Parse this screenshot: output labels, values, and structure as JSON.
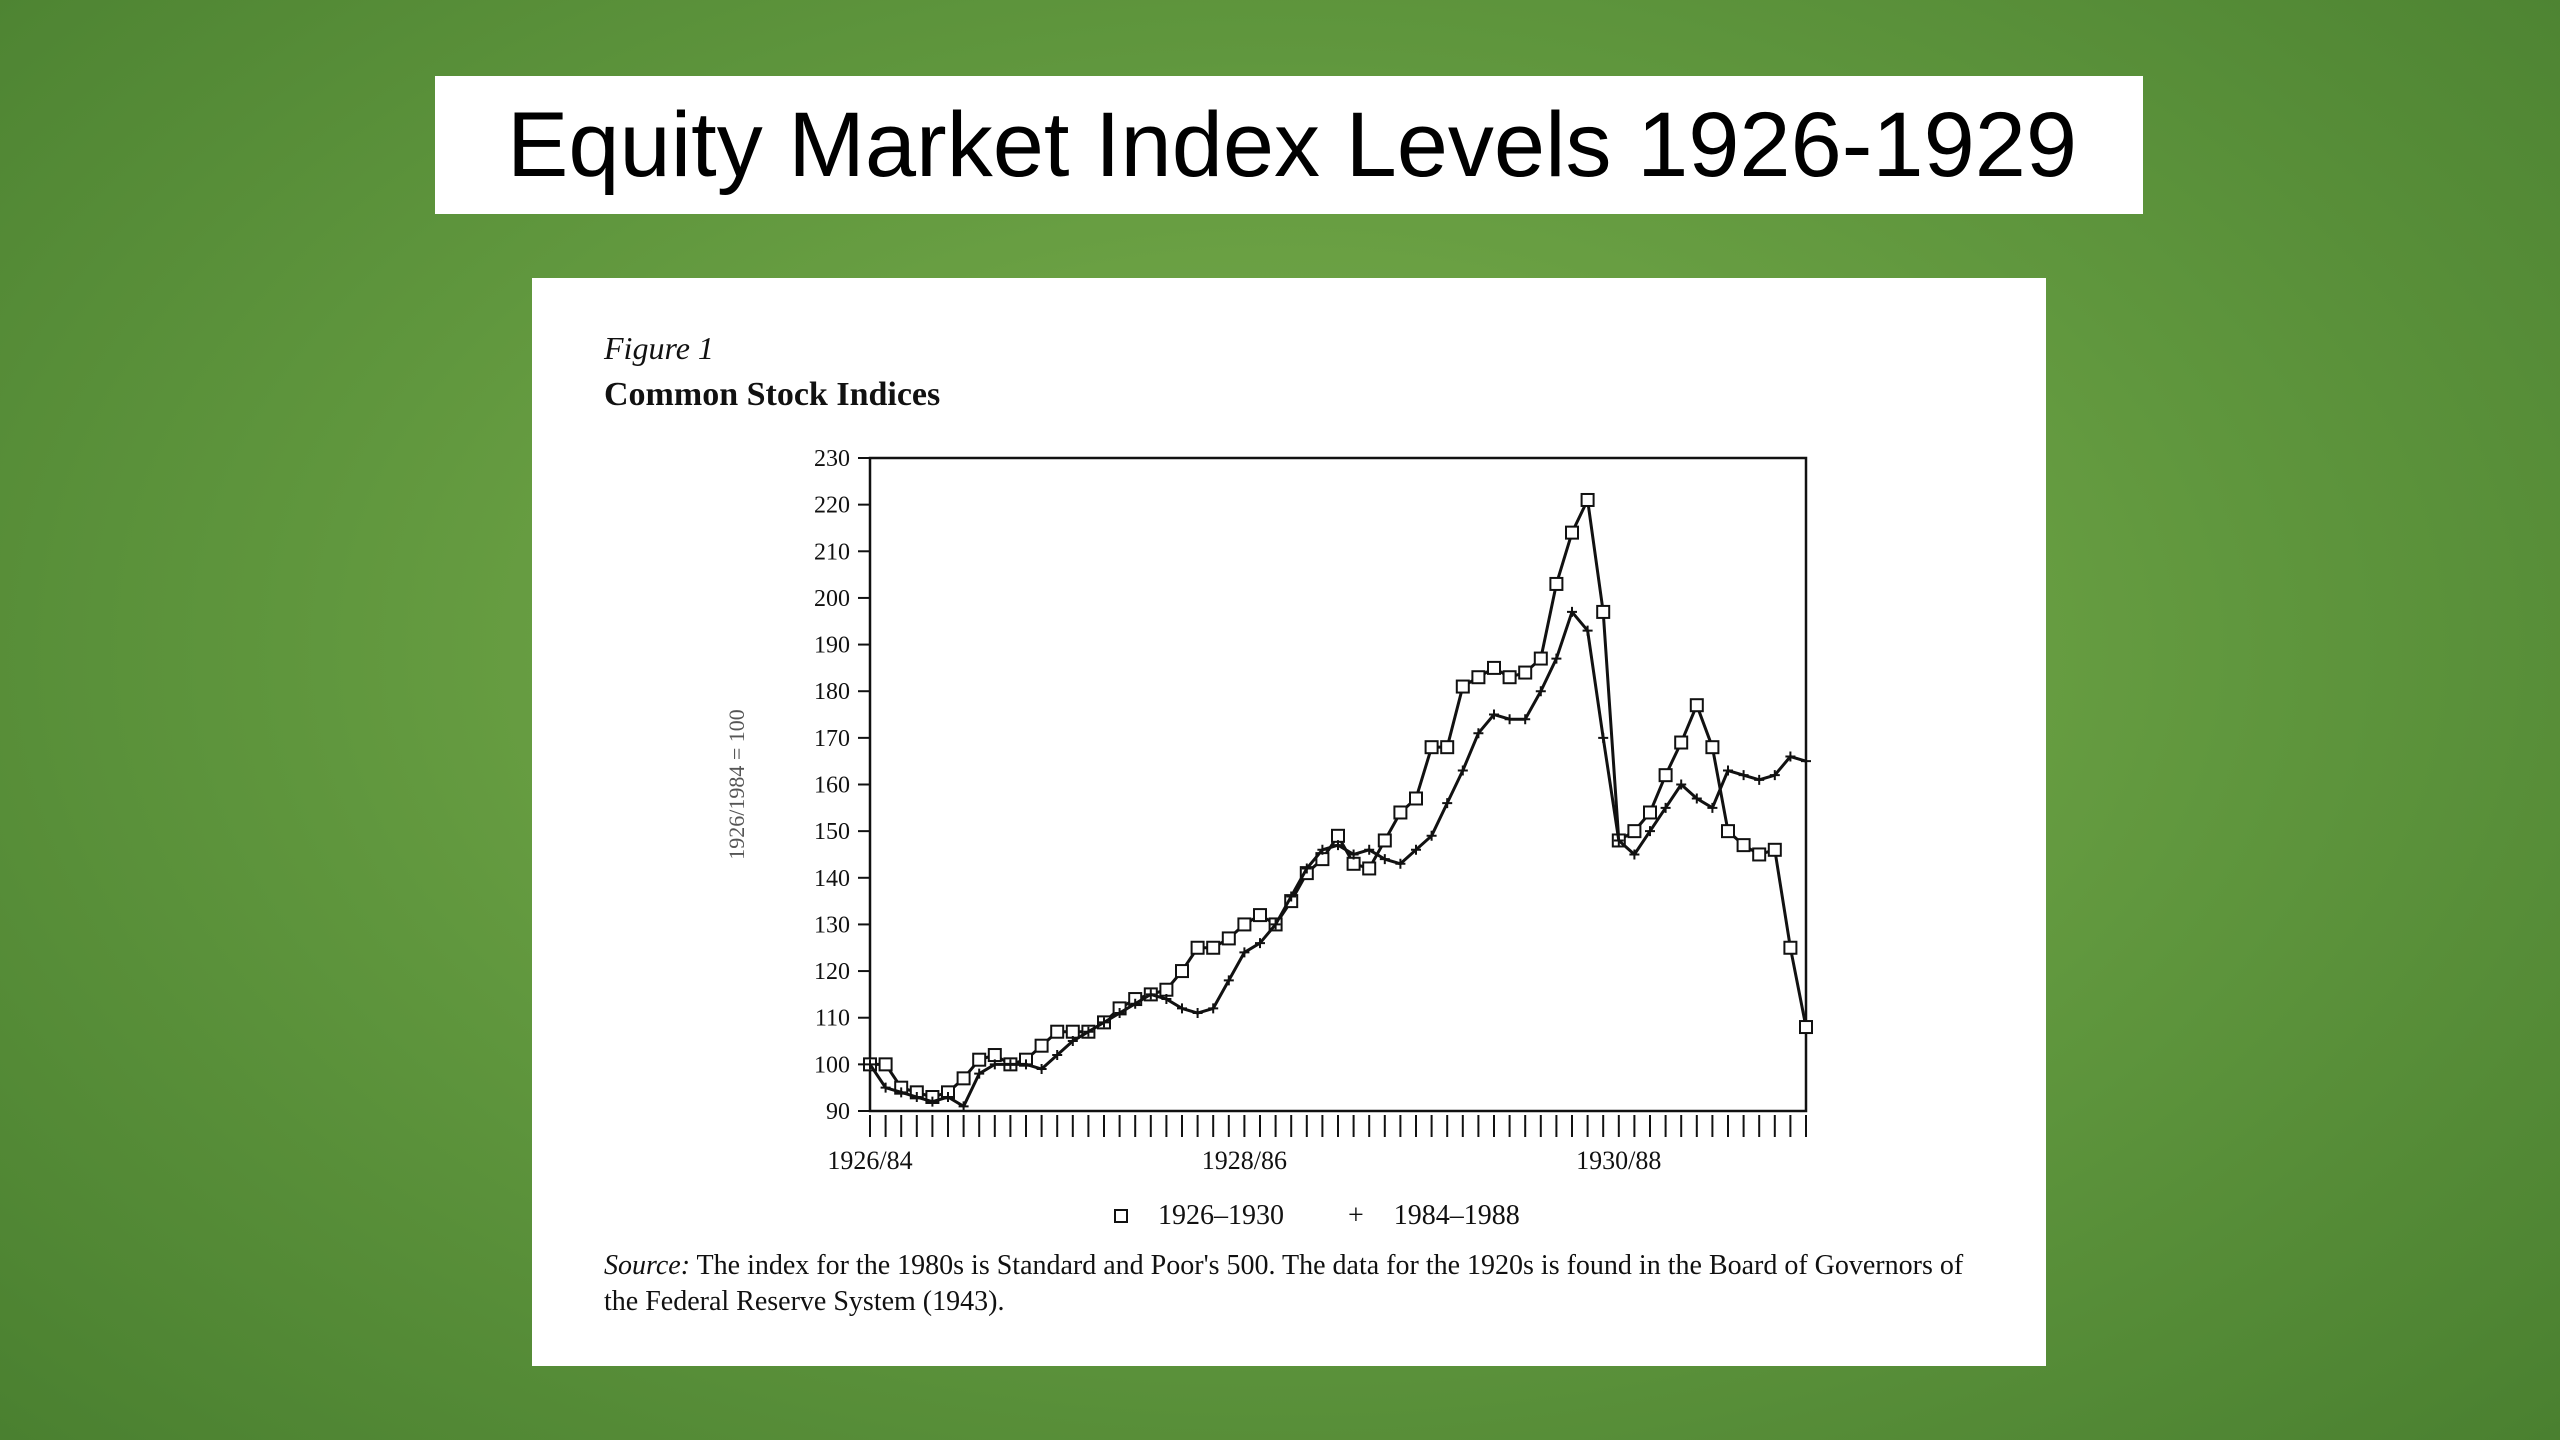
{
  "slide": {
    "title": "Equity Market Index Levels 1926-1929"
  },
  "figure": {
    "label": "Figure 1",
    "title": "Common Stock Indices",
    "source_label": "Source:",
    "source_text": "The index for the 1980s is Standard and Poor's 500. The data for the 1920s is found in the Board of Governors of the Federal Reserve System (1943)."
  },
  "colors": {
    "background": "#5f963d",
    "panel": "#ffffff",
    "ink": "#111111"
  },
  "chart_data": {
    "type": "line",
    "title": "Common Stock Indices",
    "xlabel": "",
    "ylabel": "1926/1984 = 100",
    "ylim": [
      90,
      230
    ],
    "yticks": [
      90,
      100,
      110,
      120,
      130,
      140,
      150,
      160,
      170,
      180,
      190,
      200,
      210,
      220,
      230
    ],
    "x_tick_labels": [
      {
        "index": 0,
        "label": "1926/84"
      },
      {
        "index": 24,
        "label": "1928/86"
      },
      {
        "index": 48,
        "label": "1930/88"
      }
    ],
    "n_periods": 61,
    "legend": "bottom",
    "grid": false,
    "series": [
      {
        "name": "1926–1930",
        "marker": "square",
        "values": [
          100,
          100,
          95,
          94,
          93,
          94,
          97,
          101,
          102,
          100,
          101,
          104,
          107,
          107,
          107,
          109,
          112,
          114,
          115,
          116,
          120,
          125,
          125,
          127,
          130,
          132,
          130,
          135,
          141,
          144,
          149,
          143,
          142,
          148,
          154,
          157,
          168,
          168,
          181,
          183,
          185,
          183,
          184,
          187,
          203,
          214,
          221,
          197,
          148,
          150,
          154,
          162,
          169,
          177,
          168,
          150,
          147,
          145,
          146,
          125,
          108
        ]
      },
      {
        "name": "1984–1988",
        "marker": "plus",
        "values": [
          100,
          95,
          94,
          93,
          92,
          93,
          91,
          98,
          100,
          100,
          100,
          99,
          102,
          105,
          107,
          109,
          111,
          113,
          115,
          114,
          112,
          111,
          112,
          118,
          124,
          126,
          130,
          136,
          142,
          146,
          147,
          145,
          146,
          144,
          143,
          146,
          149,
          156,
          163,
          171,
          175,
          174,
          174,
          180,
          187,
          197,
          193,
          170,
          148,
          145,
          150,
          155,
          160,
          157,
          155,
          163,
          162,
          161,
          162,
          166,
          165
        ]
      }
    ]
  }
}
